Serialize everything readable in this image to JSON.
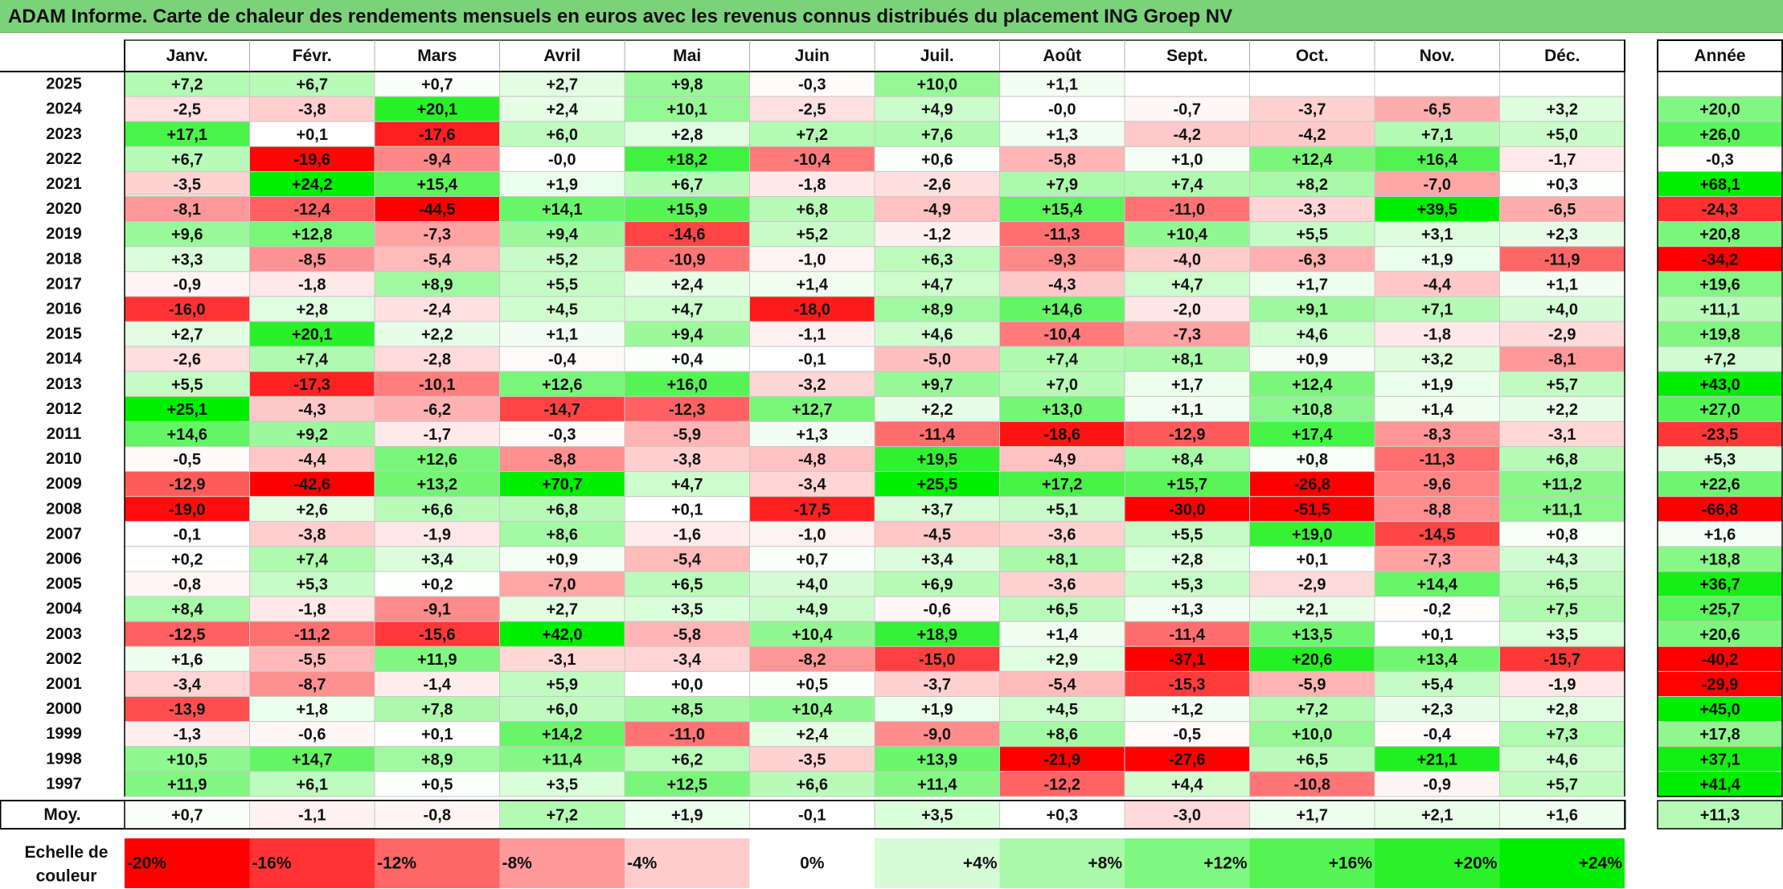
{
  "title": "ADAM Informe. Carte de chaleur des rendements mensuels en euros avec les revenus connus distribués du placement ING Groep NV",
  "chart_data": {
    "type": "heatmap",
    "months": [
      "Janv.",
      "Févr.",
      "Mars",
      "Avril",
      "Mai",
      "Juin",
      "Juil.",
      "Août",
      "Sept.",
      "Oct.",
      "Nov.",
      "Déc."
    ],
    "annual_header": "Année",
    "rows": [
      {
        "year": "2025",
        "values": [
          "+7,2",
          "+6,7",
          "+0,7",
          "+2,7",
          "+9,8",
          "-0,3",
          "+10,0",
          "+1,1",
          "",
          "",
          "",
          ""
        ],
        "annual": ""
      },
      {
        "year": "2024",
        "values": [
          "-2,5",
          "-3,8",
          "+20,1",
          "+2,4",
          "+10,1",
          "-2,5",
          "+4,9",
          "-0,0",
          "-0,7",
          "-3,7",
          "-6,5",
          "+3,2"
        ],
        "annual": "+20,0"
      },
      {
        "year": "2023",
        "values": [
          "+17,1",
          "+0,1",
          "-17,6",
          "+6,0",
          "+2,8",
          "+7,2",
          "+7,6",
          "+1,3",
          "-4,2",
          "-4,2",
          "+7,1",
          "+5,0"
        ],
        "annual": "+26,0"
      },
      {
        "year": "2022",
        "values": [
          "+6,7",
          "-19,6",
          "-9,4",
          "-0,0",
          "+18,2",
          "-10,4",
          "+0,6",
          "-5,8",
          "+1,0",
          "+12,4",
          "+16,4",
          "-1,7"
        ],
        "annual": "-0,3"
      },
      {
        "year": "2021",
        "values": [
          "-3,5",
          "+24,2",
          "+15,4",
          "+1,9",
          "+6,7",
          "-1,8",
          "-2,6",
          "+7,9",
          "+7,4",
          "+8,2",
          "-7,0",
          "+0,3"
        ],
        "annual": "+68,1"
      },
      {
        "year": "2020",
        "values": [
          "-8,1",
          "-12,4",
          "-44,5",
          "+14,1",
          "+15,9",
          "+6,8",
          "-4,9",
          "+15,4",
          "-11,0",
          "-3,3",
          "+39,5",
          "-6,5"
        ],
        "annual": "-24,3"
      },
      {
        "year": "2019",
        "values": [
          "+9,6",
          "+12,8",
          "-7,3",
          "+9,4",
          "-14,6",
          "+5,2",
          "-1,2",
          "-11,3",
          "+10,4",
          "+5,5",
          "+3,1",
          "+2,3"
        ],
        "annual": "+20,8"
      },
      {
        "year": "2018",
        "values": [
          "+3,3",
          "-8,5",
          "-5,4",
          "+5,2",
          "-10,9",
          "-1,0",
          "+6,3",
          "-9,3",
          "-4,0",
          "-6,3",
          "+1,9",
          "-11,9"
        ],
        "annual": "-34,2"
      },
      {
        "year": "2017",
        "values": [
          "-0,9",
          "-1,8",
          "+8,9",
          "+5,5",
          "+2,4",
          "+1,4",
          "+4,7",
          "-4,3",
          "+4,7",
          "+1,7",
          "-4,4",
          "+1,1"
        ],
        "annual": "+19,6"
      },
      {
        "year": "2016",
        "values": [
          "-16,0",
          "+2,8",
          "-2,4",
          "+4,5",
          "+4,7",
          "-18,0",
          "+8,9",
          "+14,6",
          "-2,0",
          "+9,1",
          "+7,1",
          "+4,0"
        ],
        "annual": "+11,1"
      },
      {
        "year": "2015",
        "values": [
          "+2,7",
          "+20,1",
          "+2,2",
          "+1,1",
          "+9,4",
          "-1,1",
          "+4,6",
          "-10,4",
          "-7,3",
          "+4,6",
          "-1,8",
          "-2,9"
        ],
        "annual": "+19,8"
      },
      {
        "year": "2014",
        "values": [
          "-2,6",
          "+7,4",
          "-2,8",
          "-0,4",
          "+0,4",
          "-0,1",
          "-5,0",
          "+7,4",
          "+8,1",
          "+0,9",
          "+3,2",
          "-8,1"
        ],
        "annual": "+7,2"
      },
      {
        "year": "2013",
        "values": [
          "+5,5",
          "-17,3",
          "-10,1",
          "+12,6",
          "+16,0",
          "-3,2",
          "+9,7",
          "+7,0",
          "+1,7",
          "+12,4",
          "+1,9",
          "+5,7"
        ],
        "annual": "+43,0"
      },
      {
        "year": "2012",
        "values": [
          "+25,1",
          "-4,3",
          "-6,2",
          "-14,7",
          "-12,3",
          "+12,7",
          "+2,2",
          "+13,0",
          "+1,1",
          "+10,8",
          "+1,4",
          "+2,2"
        ],
        "annual": "+27,0"
      },
      {
        "year": "2011",
        "values": [
          "+14,6",
          "+9,2",
          "-1,7",
          "-0,3",
          "-5,9",
          "+1,3",
          "-11,4",
          "-18,6",
          "-12,9",
          "+17,4",
          "-8,3",
          "-3,1"
        ],
        "annual": "-23,5"
      },
      {
        "year": "2010",
        "values": [
          "-0,5",
          "-4,4",
          "+12,6",
          "-8,8",
          "-3,8",
          "-4,8",
          "+19,5",
          "-4,9",
          "+8,4",
          "+0,8",
          "-11,3",
          "+6,8"
        ],
        "annual": "+5,3"
      },
      {
        "year": "2009",
        "values": [
          "-12,9",
          "-42,6",
          "+13,2",
          "+70,7",
          "+4,7",
          "-3,4",
          "+25,5",
          "+17,2",
          "+15,7",
          "-26,8",
          "-9,6",
          "+11,2"
        ],
        "annual": "+22,6"
      },
      {
        "year": "2008",
        "values": [
          "-19,0",
          "+2,6",
          "+6,6",
          "+6,8",
          "+0,1",
          "-17,5",
          "+3,7",
          "+5,1",
          "-30,0",
          "-51,5",
          "-8,8",
          "+11,1"
        ],
        "annual": "-66,8"
      },
      {
        "year": "2007",
        "values": [
          "-0,1",
          "-3,8",
          "-1,9",
          "+8,6",
          "-1,6",
          "-1,0",
          "-4,5",
          "-3,6",
          "+5,5",
          "+19,0",
          "-14,5",
          "+0,8"
        ],
        "annual": "+1,6"
      },
      {
        "year": "2006",
        "values": [
          "+0,2",
          "+7,4",
          "+3,4",
          "+0,9",
          "-5,4",
          "+0,7",
          "+3,4",
          "+8,1",
          "+2,8",
          "+0,1",
          "-7,3",
          "+4,3"
        ],
        "annual": "+18,8"
      },
      {
        "year": "2005",
        "values": [
          "-0,8",
          "+5,3",
          "+0,2",
          "-7,0",
          "+6,5",
          "+4,0",
          "+6,9",
          "-3,6",
          "+5,3",
          "-2,9",
          "+14,4",
          "+6,5"
        ],
        "annual": "+36,7"
      },
      {
        "year": "2004",
        "values": [
          "+8,4",
          "-1,8",
          "-9,1",
          "+2,7",
          "+3,5",
          "+4,9",
          "-0,6",
          "+6,5",
          "+1,3",
          "+2,1",
          "-0,2",
          "+7,5"
        ],
        "annual": "+25,7"
      },
      {
        "year": "2003",
        "values": [
          "-12,5",
          "-11,2",
          "-15,6",
          "+42,0",
          "-5,8",
          "+10,4",
          "+18,9",
          "+1,4",
          "-11,4",
          "+13,5",
          "+0,1",
          "+3,5"
        ],
        "annual": "+20,6"
      },
      {
        "year": "2002",
        "values": [
          "+1,6",
          "-5,5",
          "+11,9",
          "-3,1",
          "-3,4",
          "-8,2",
          "-15,0",
          "+2,9",
          "-37,1",
          "+20,6",
          "+13,4",
          "-15,7"
        ],
        "annual": "-40,2"
      },
      {
        "year": "2001",
        "values": [
          "-3,4",
          "-8,7",
          "-1,4",
          "+5,9",
          "+0,0",
          "+0,5",
          "-3,7",
          "-5,4",
          "-15,3",
          "-5,9",
          "+5,4",
          "-1,9"
        ],
        "annual": "-29,9"
      },
      {
        "year": "2000",
        "values": [
          "-13,9",
          "+1,8",
          "+7,8",
          "+6,0",
          "+8,5",
          "+10,4",
          "+1,9",
          "+4,5",
          "+1,2",
          "+7,2",
          "+2,3",
          "+2,8"
        ],
        "annual": "+45,0"
      },
      {
        "year": "1999",
        "values": [
          "-1,3",
          "-0,6",
          "+0,1",
          "+14,2",
          "-11,0",
          "+2,4",
          "-9,0",
          "+8,6",
          "-0,5",
          "+10,0",
          "-0,4",
          "+7,3"
        ],
        "annual": "+17,8"
      },
      {
        "year": "1998",
        "values": [
          "+10,5",
          "+14,7",
          "+8,9",
          "+11,4",
          "+6,2",
          "-3,5",
          "+13,9",
          "-21,9",
          "-27,6",
          "+6,5",
          "+21,1",
          "+4,6"
        ],
        "annual": "+37,1"
      },
      {
        "year": "1997",
        "values": [
          "+11,9",
          "+6,1",
          "+0,5",
          "+3,5",
          "+12,5",
          "+6,6",
          "+11,4",
          "-12,2",
          "+4,4",
          "-10,8",
          "-0,9",
          "+5,7"
        ],
        "annual": "+41,4"
      }
    ],
    "average": {
      "label": "Moy.",
      "values": [
        "+0,7",
        "-1,1",
        "-0,8",
        "+7,2",
        "+1,9",
        "-0,1",
        "+3,5",
        "+0,3",
        "-3,0",
        "+1,7",
        "+2,1",
        "+1,6"
      ],
      "annual": "+11,3"
    },
    "scale": {
      "label_line1": "Echelle de",
      "label_line2": "couleur",
      "steps": [
        "-20%",
        "-16%",
        "-12%",
        "-8%",
        "-4%",
        "0%",
        "+4%",
        "+8%",
        "+12%",
        "+16%",
        "+20%",
        "+24%"
      ]
    },
    "colors": {
      "negative_max": "#ff0000",
      "neutral": "#ffffff",
      "positive_max": "#00ee00",
      "title_bar": "#7bd27b"
    }
  }
}
